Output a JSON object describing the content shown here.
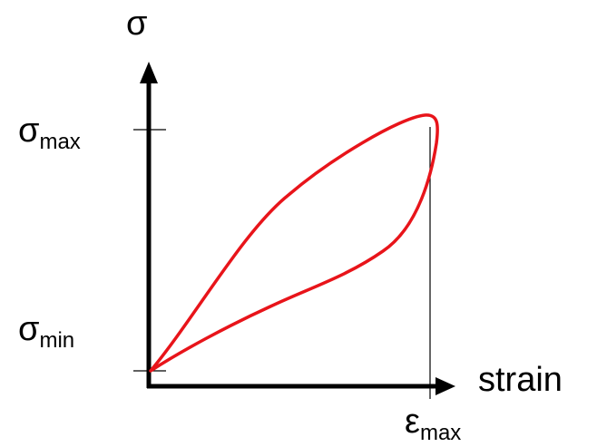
{
  "labels": {
    "y_axis_symbol": "σ",
    "sigma_max_symbol": "σ",
    "sigma_max_subscript": "max",
    "sigma_min_symbol": "σ",
    "sigma_min_subscript": "min",
    "x_axis_label": "strain",
    "epsilon_max_symbol": "ε",
    "epsilon_max_subscript": "max"
  },
  "colors": {
    "axes": "#000000",
    "curve": "#e8141a",
    "guide_lines": "#000000"
  }
}
